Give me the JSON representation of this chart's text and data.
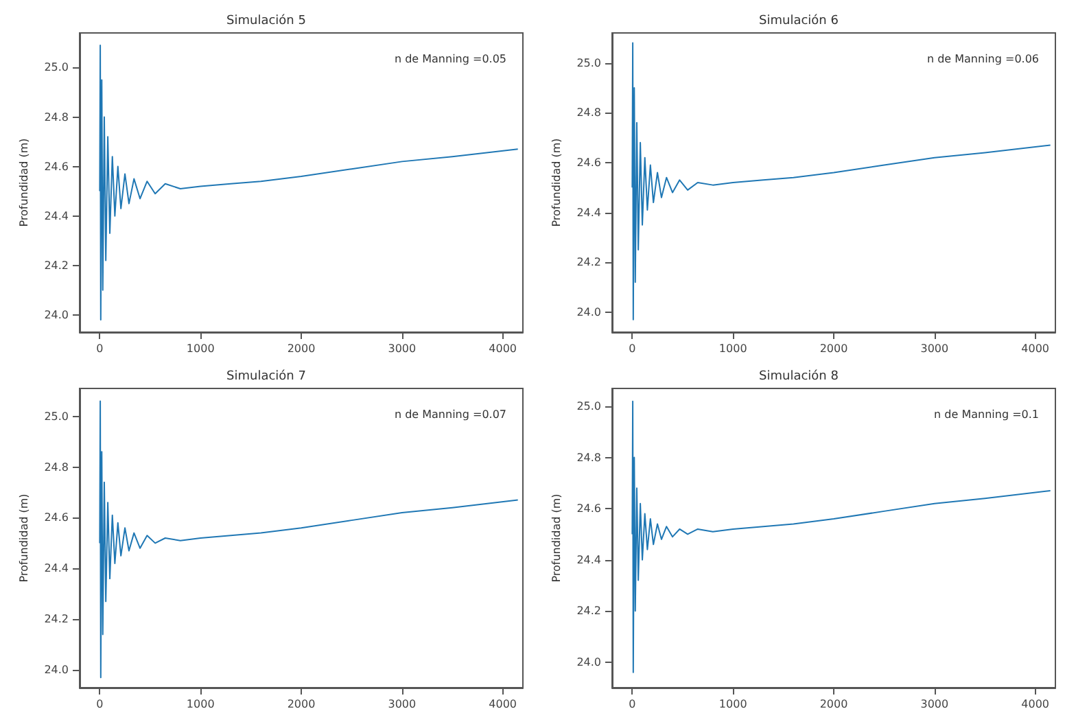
{
  "chart_data": [
    {
      "type": "line",
      "title": "Simulación 5",
      "ylabel": "Profundidad (m)",
      "annotations": [
        "n de Manning =0.05"
      ],
      "xlim": [
        -200,
        4200
      ],
      "ylim": [
        23.93,
        25.14
      ],
      "xticks": [
        0,
        1000,
        2000,
        3000,
        4000
      ],
      "yticks": [
        {
          "value": 24,
          "label": "24.0"
        },
        {
          "value": 24.2,
          "label": "24.2"
        },
        {
          "value": 24.4,
          "label": "24.4"
        },
        {
          "value": 24.6,
          "label": "24.6"
        },
        {
          "value": 24.8,
          "label": "24.8"
        },
        {
          "value": 25,
          "label": "25.0"
        }
      ],
      "grid": false,
      "series": [
        {
          "color": "#1f77b4",
          "x": [
            0,
            5,
            10,
            20,
            30,
            45,
            60,
            80,
            100,
            125,
            150,
            180,
            210,
            250,
            290,
            340,
            400,
            470,
            550,
            650,
            800,
            1000,
            1300,
            1600,
            2000,
            2500,
            3000,
            3500,
            4150
          ],
          "values": [
            24.5,
            25.09,
            23.98,
            24.95,
            24.1,
            24.8,
            24.22,
            24.72,
            24.33,
            24.64,
            24.4,
            24.6,
            24.43,
            24.57,
            24.45,
            24.55,
            24.47,
            24.54,
            24.49,
            24.53,
            24.51,
            24.52,
            24.53,
            24.54,
            24.56,
            24.59,
            24.62,
            24.64,
            24.67
          ]
        }
      ]
    },
    {
      "type": "line",
      "title": "Simulación 6",
      "ylabel": "Profundidad (m)",
      "annotations": [
        "n de Manning =0.06"
      ],
      "xlim": [
        -200,
        4200
      ],
      "ylim": [
        23.92,
        25.12
      ],
      "xticks": [
        0,
        1000,
        2000,
        3000,
        4000
      ],
      "yticks": [
        {
          "value": 24,
          "label": "24.0"
        },
        {
          "value": 24.2,
          "label": "24.2"
        },
        {
          "value": 24.4,
          "label": "24.4"
        },
        {
          "value": 24.6,
          "label": "24.6"
        },
        {
          "value": 24.8,
          "label": "24.8"
        },
        {
          "value": 25,
          "label": "25.0"
        }
      ],
      "grid": false,
      "series": [
        {
          "color": "#1f77b4",
          "x": [
            0,
            5,
            10,
            20,
            30,
            45,
            60,
            80,
            100,
            125,
            150,
            180,
            210,
            250,
            290,
            340,
            400,
            470,
            550,
            650,
            800,
            1000,
            1300,
            1600,
            2000,
            2500,
            3000,
            3500,
            4150
          ],
          "values": [
            24.5,
            25.08,
            23.97,
            24.9,
            24.12,
            24.76,
            24.25,
            24.68,
            24.35,
            24.62,
            24.41,
            24.59,
            24.44,
            24.56,
            24.46,
            24.54,
            24.48,
            24.53,
            24.49,
            24.52,
            24.51,
            24.52,
            24.53,
            24.54,
            24.56,
            24.59,
            24.62,
            24.64,
            24.67
          ]
        }
      ]
    },
    {
      "type": "line",
      "title": "Simulación 7",
      "ylabel": "Profundidad (m)",
      "annotations": [
        "n de Manning =0.07"
      ],
      "xlim": [
        -200,
        4200
      ],
      "ylim": [
        23.93,
        25.11
      ],
      "xticks": [
        0,
        1000,
        2000,
        3000,
        4000
      ],
      "yticks": [
        {
          "value": 24,
          "label": "24.0"
        },
        {
          "value": 24.2,
          "label": "24.2"
        },
        {
          "value": 24.4,
          "label": "24.4"
        },
        {
          "value": 24.6,
          "label": "24.6"
        },
        {
          "value": 24.8,
          "label": "24.8"
        },
        {
          "value": 25,
          "label": "25.0"
        }
      ],
      "grid": false,
      "series": [
        {
          "color": "#1f77b4",
          "x": [
            0,
            5,
            10,
            20,
            30,
            45,
            60,
            80,
            100,
            125,
            150,
            180,
            210,
            250,
            290,
            340,
            400,
            470,
            550,
            650,
            800,
            1000,
            1300,
            1600,
            2000,
            2500,
            3000,
            3500,
            4150
          ],
          "values": [
            24.5,
            25.06,
            23.97,
            24.86,
            24.14,
            24.74,
            24.27,
            24.66,
            24.36,
            24.61,
            24.42,
            24.58,
            24.45,
            24.56,
            24.47,
            24.54,
            24.48,
            24.53,
            24.5,
            24.52,
            24.51,
            24.52,
            24.53,
            24.54,
            24.56,
            24.59,
            24.62,
            24.64,
            24.67
          ]
        }
      ]
    },
    {
      "type": "line",
      "title": "Simulación 8",
      "ylabel": "Profundidad (m)",
      "annotations": [
        "n de Manning =0.1"
      ],
      "xlim": [
        -200,
        4200
      ],
      "ylim": [
        23.9,
        25.07
      ],
      "xticks": [
        0,
        1000,
        2000,
        3000,
        4000
      ],
      "yticks": [
        {
          "value": 24,
          "label": "24.0"
        },
        {
          "value": 24.2,
          "label": "24.2"
        },
        {
          "value": 24.4,
          "label": "24.4"
        },
        {
          "value": 24.6,
          "label": "24.6"
        },
        {
          "value": 24.8,
          "label": "24.8"
        },
        {
          "value": 25,
          "label": "25.0"
        }
      ],
      "grid": false,
      "series": [
        {
          "color": "#1f77b4",
          "x": [
            0,
            5,
            10,
            20,
            30,
            45,
            60,
            80,
            100,
            125,
            150,
            180,
            210,
            250,
            290,
            340,
            400,
            470,
            550,
            650,
            800,
            1000,
            1300,
            1600,
            2000,
            2500,
            3000,
            3500,
            4150
          ],
          "values": [
            24.5,
            25.02,
            23.96,
            24.8,
            24.2,
            24.68,
            24.32,
            24.62,
            24.4,
            24.58,
            24.44,
            24.56,
            24.46,
            24.54,
            24.48,
            24.53,
            24.49,
            24.52,
            24.5,
            24.52,
            24.51,
            24.52,
            24.53,
            24.54,
            24.56,
            24.59,
            24.62,
            24.64,
            24.67
          ]
        }
      ]
    }
  ]
}
